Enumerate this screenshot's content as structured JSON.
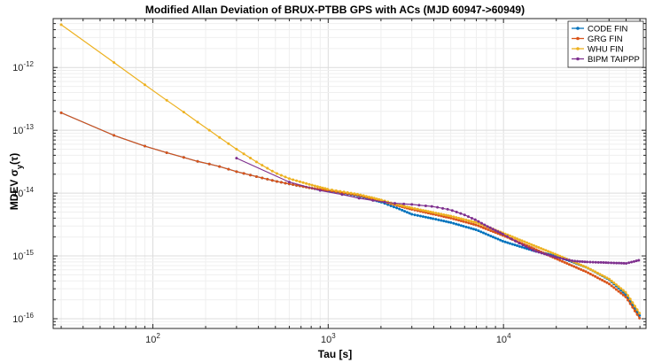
{
  "chart_data": {
    "type": "line",
    "title": "Modified Allan Deviation of BRUX-PTBB GPS with ACs (MJD 60947->60949)",
    "xlabel": "Tau [s]",
    "ylabel": "MDEV σy(τ)",
    "xscale": "log",
    "yscale": "log",
    "xlim": [
      27,
      65000
    ],
    "ylim": [
      7e-17,
      6e-12
    ],
    "grid": true,
    "legend_position": "top-right",
    "x_ticks": [
      {
        "value": 100,
        "base": "10",
        "exp": "2"
      },
      {
        "value": 1000,
        "base": "10",
        "exp": "3"
      },
      {
        "value": 10000,
        "base": "10",
        "exp": "4"
      }
    ],
    "y_ticks": [
      {
        "value": 1e-16,
        "base": "10",
        "exp": "-16"
      },
      {
        "value": 1e-15,
        "base": "10",
        "exp": "-15"
      },
      {
        "value": 1e-14,
        "base": "10",
        "exp": "-14"
      },
      {
        "value": 1e-13,
        "base": "10",
        "exp": "-13"
      },
      {
        "value": 1e-12,
        "base": "10",
        "exp": "-12"
      }
    ],
    "series": [
      {
        "name": "CODE FIN",
        "color": "#0072BD",
        "x": [
          30,
          60,
          90,
          120,
          150,
          180,
          210,
          240,
          300,
          400,
          500,
          600,
          800,
          1000,
          1500,
          2000,
          2500,
          3000,
          4000,
          5000,
          7000,
          10000,
          15000,
          20000,
          30000,
          40000,
          50000,
          60000
        ],
        "y": [
          1.9e-13,
          8.3e-14,
          5.6e-14,
          4.4e-14,
          3.7e-14,
          3.2e-14,
          2.9e-14,
          2.65e-14,
          2.2e-14,
          1.8e-14,
          1.55e-14,
          1.4e-14,
          1.2e-14,
          1.08e-14,
          9e-15,
          7.2e-15,
          5.7e-15,
          4.6e-15,
          3.9e-15,
          3.4e-15,
          2.6e-15,
          1.7e-15,
          1.2e-15,
          1e-15,
          6.5e-16,
          4.2e-16,
          2.4e-16,
          1.1e-16
        ]
      },
      {
        "name": "GRG FIN",
        "color": "#D95319",
        "x": [
          30,
          60,
          90,
          120,
          150,
          180,
          210,
          240,
          300,
          400,
          500,
          600,
          800,
          1000,
          1500,
          2000,
          2500,
          3000,
          4000,
          5000,
          7000,
          10000,
          15000,
          20000,
          30000,
          40000,
          50000,
          60000
        ],
        "y": [
          1.9e-13,
          8.3e-14,
          5.6e-14,
          4.4e-14,
          3.7e-14,
          3.2e-14,
          2.9e-14,
          2.65e-14,
          2.2e-14,
          1.8e-14,
          1.55e-14,
          1.4e-14,
          1.2e-14,
          1.1e-14,
          9.2e-15,
          7.5e-15,
          6.3e-15,
          5.5e-15,
          4.6e-15,
          4e-15,
          3.1e-15,
          2.1e-15,
          1.3e-15,
          9e-16,
          5.5e-16,
          3.6e-16,
          2.2e-16,
          1e-16
        ]
      },
      {
        "name": "WHU FIN",
        "color": "#EDB120",
        "x": [
          30,
          60,
          90,
          120,
          150,
          180,
          210,
          240,
          300,
          400,
          500,
          600,
          800,
          1000,
          1500,
          2000,
          2500,
          3000,
          4000,
          5000,
          7000,
          10000,
          15000,
          20000,
          30000,
          40000,
          50000,
          60000
        ],
        "y": [
          4.8e-12,
          1.2e-12,
          5.3e-13,
          3e-13,
          1.95e-13,
          1.35e-13,
          1e-13,
          7.7e-14,
          5e-14,
          3e-14,
          2.1e-14,
          1.7e-14,
          1.35e-14,
          1.15e-14,
          9.5e-15,
          7.8e-15,
          6.5e-15,
          5.8e-15,
          4.9e-15,
          4.3e-15,
          3.4e-15,
          2.3e-15,
          1.45e-15,
          1.05e-15,
          6.5e-16,
          4.3e-16,
          2.6e-16,
          1.2e-16
        ]
      },
      {
        "name": "BIPM TAIPPP",
        "color": "#7E2F8E",
        "x": [
          300,
          600,
          900,
          1200,
          1500,
          2000,
          2500,
          3000,
          4000,
          5000,
          6000,
          7000,
          8000,
          10000,
          12000,
          15000,
          20000,
          25000,
          30000,
          40000,
          50000,
          60000
        ],
        "y": [
          3.6e-14,
          1.5e-14,
          1.1e-14,
          9.5e-15,
          8.3e-15,
          7.3e-15,
          6.8e-15,
          6.6e-15,
          6.1e-15,
          5.4e-15,
          4.5e-15,
          3.7e-15,
          3e-15,
          2.2e-15,
          1.65e-15,
          1.2e-15,
          9.5e-16,
          8.3e-16,
          8e-16,
          7.8e-16,
          7.6e-16,
          8.6e-16
        ]
      }
    ]
  }
}
